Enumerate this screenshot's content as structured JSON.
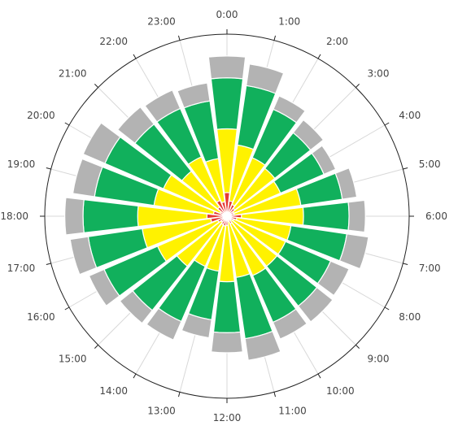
{
  "chart_data": {
    "type": "bar",
    "subtype": "polar-stacked-bar",
    "categories": [
      "0:00",
      "1:00",
      "2:00",
      "3:00",
      "4:00",
      "5:00",
      "6:00",
      "7:00",
      "8:00",
      "9:00",
      "10:00",
      "11:00",
      "12:00",
      "13:00",
      "14:00",
      "15:00",
      "16:00",
      "17:00",
      "18:00",
      "19:00",
      "20:00",
      "21:00",
      "22:00",
      "23:00"
    ],
    "stacked": true,
    "radial_max": 100,
    "grid": true,
    "legend": "none",
    "series": [
      {
        "color": "#5b8dd9",
        "values": [
          2,
          1.5,
          2,
          1.5,
          1,
          1,
          2,
          1.5,
          1,
          1,
          1.5,
          1,
          2,
          1.5,
          1,
          1,
          1.5,
          2,
          2,
          1.5,
          1,
          1.5,
          1.5,
          2
        ]
      },
      {
        "color": "#e53935",
        "values": [
          11,
          7,
          5,
          4,
          3,
          3,
          6,
          4,
          3,
          2,
          3,
          2,
          3,
          4,
          4,
          3,
          4,
          7,
          9,
          6,
          3,
          5,
          8,
          6
        ]
      },
      {
        "color": "#fff200",
        "values": [
          35,
          31,
          28,
          28,
          28,
          37,
          34,
          30,
          31,
          32,
          31,
          31,
          31,
          25,
          25,
          31,
          36,
          38,
          38,
          33,
          34,
          25,
          26,
          24
        ]
      },
      {
        "color": "#11b05c",
        "values": [
          28,
          33,
          29,
          25,
          26,
          23,
          25,
          31,
          27,
          28,
          28,
          34,
          28,
          27,
          33,
          31,
          32,
          30,
          30,
          33,
          35,
          33,
          29,
          32
        ]
      },
      {
        "color": "#b3b3b3",
        "values": [
          12,
          12,
          8,
          9,
          7,
          8,
          9,
          12,
          11,
          11,
          10,
          12,
          11,
          10,
          11,
          9,
          9,
          10,
          10,
          12,
          13,
          12,
          11,
          10
        ]
      }
    ]
  }
}
